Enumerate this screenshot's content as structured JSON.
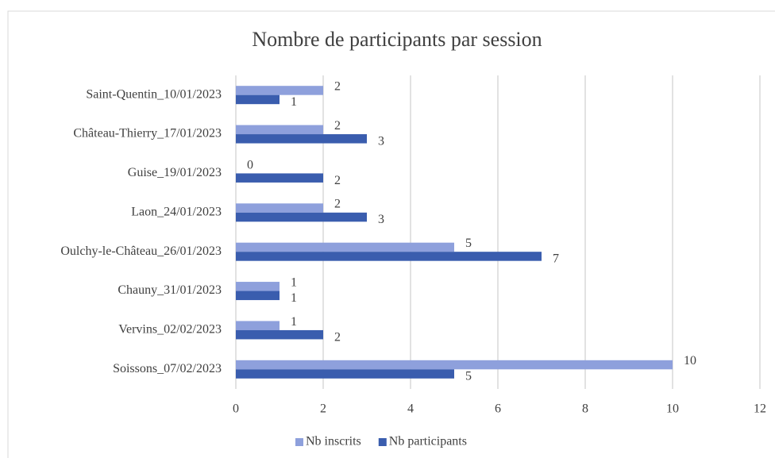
{
  "chart_data": {
    "type": "hbar",
    "title": "Nombre de participants par session",
    "categories": [
      "Saint-Quentin_10/01/2023",
      "Château-Thierry_17/01/2023",
      "Guise_19/01/2023",
      "Laon_24/01/2023",
      "Oulchy-le-Château_26/01/2023",
      "Chauny_31/01/2023",
      "Vervins_02/02/2023",
      "Soissons_07/02/2023"
    ],
    "series": [
      {
        "name": "Nb inscrits",
        "color": "#8ea0dc",
        "values": [
          2,
          2,
          0,
          2,
          5,
          1,
          1,
          10
        ]
      },
      {
        "name": "Nb participants",
        "color": "#3a5dae",
        "values": [
          1,
          3,
          2,
          3,
          7,
          1,
          2,
          5
        ]
      }
    ],
    "xlim": [
      0,
      12
    ],
    "xticks": [
      0,
      2,
      4,
      6,
      8,
      10,
      12
    ],
    "grid": true,
    "legend": "bottom"
  }
}
